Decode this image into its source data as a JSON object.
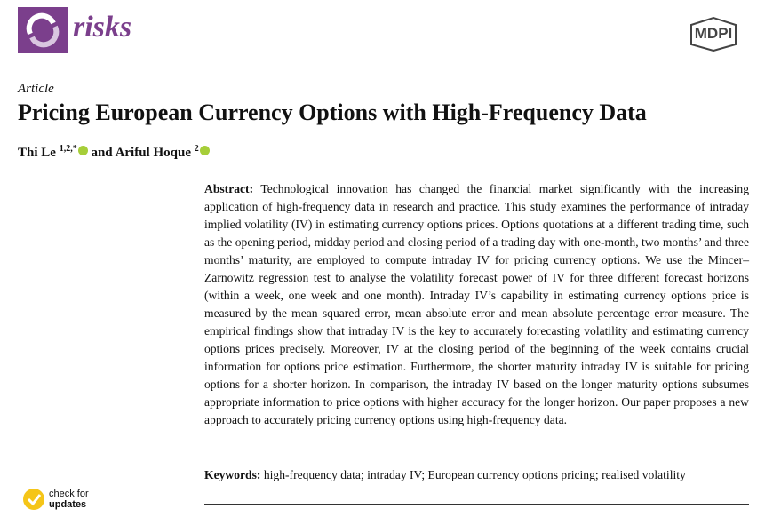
{
  "header": {
    "journal": "risks",
    "publisher": "MDPI"
  },
  "article": {
    "type": "Article",
    "title": "Pricing European Currency Options with High-Frequency Data",
    "authors": [
      {
        "name": "Thi Le",
        "affiliation": "1,2,*"
      },
      {
        "name": "Ariful Hoque",
        "affiliation": "2"
      }
    ],
    "author_connector": "and"
  },
  "abstract": {
    "label": "Abstract:",
    "text": "Technological innovation has changed the financial market significantly with the increasing application of high-frequency data in research and practice. This study examines the performance of intraday implied volatility (IV) in estimating currency options prices. Options quotations at a different trading time, such as the opening period, midday period and closing period of a trading day with one-month, two months’ and three months’ maturity, are employed to compute intraday IV for pricing currency options. We use the Mincer–Zarnowitz regression test to analyse the volatility forecast power of IV for three different forecast horizons (within a week, one week and one month). Intraday IV’s capability in estimating currency options price is measured by the mean squared error, mean absolute error and mean absolute percentage error measure. The empirical findings show that intraday IV is the key to accurately forecasting volatility and estimating currency options prices precisely. Moreover, IV at the closing period of the beginning of the week contains crucial information for options price estimation. Furthermore, the shorter maturity intraday IV is suitable for pricing options for a shorter horizon. In comparison, the intraday IV based on the longer maturity options subsumes appropriate information to price options with higher accuracy for the longer horizon. Our paper proposes a new approach to accurately pricing currency options using high-frequency data."
  },
  "keywords": {
    "label": "Keywords:",
    "text": "high-frequency data; intraday IV; European currency options pricing; realised volatility"
  },
  "check_updates": {
    "line1": "check for",
    "line2": "updates"
  }
}
